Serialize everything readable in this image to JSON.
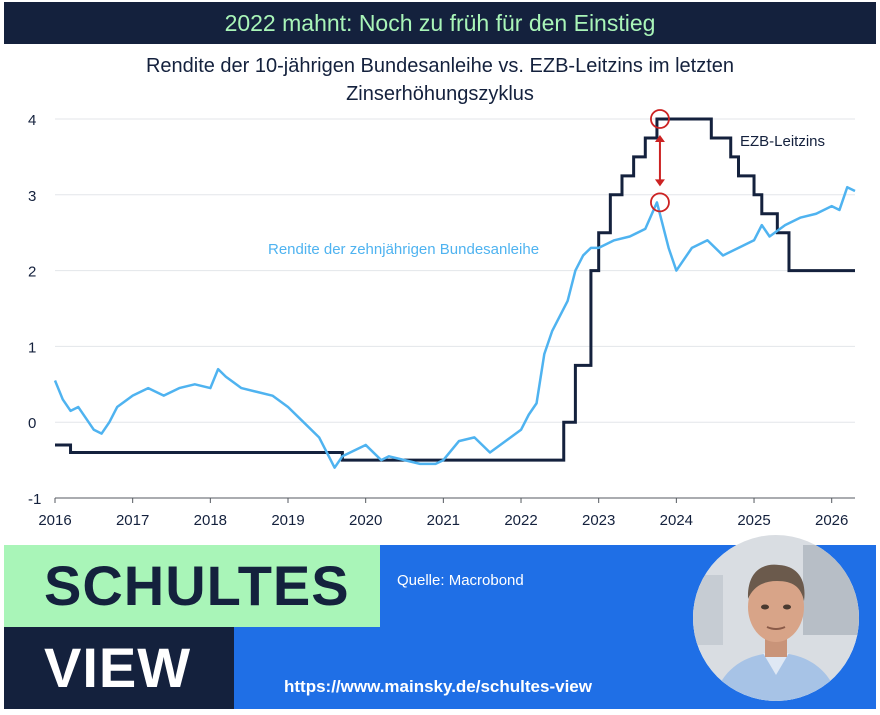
{
  "banner": {
    "title": "2022 mahnt: Noch zu früh für den Einstieg"
  },
  "brand": {
    "line1": "SCHULTES",
    "line2": "VIEW"
  },
  "footer": {
    "source": "Quelle: Macrobond",
    "url": "https://www.mainsky.de/schultes-view"
  },
  "colors": {
    "navy": "#14213d",
    "mint": "#a9f5b8",
    "blue": "#1f6fe6",
    "yield_line": "#4fb3f0",
    "rate_line": "#14213d",
    "marker": "#cc2222"
  },
  "chart_data": {
    "type": "line",
    "title_lines": [
      "Rendite der 10-jährigen Bundesanleihe vs. EZB-Leitzins im letzten",
      "Zinserhöhungszyklus"
    ],
    "xlabel": "",
    "ylabel": "",
    "xlim": [
      2016,
      2026.3
    ],
    "ylim": [
      -1,
      4
    ],
    "x_ticks": [
      "2016",
      "2017",
      "2018",
      "2019",
      "2020",
      "2021",
      "2022",
      "2023",
      "2024",
      "2025",
      "2026"
    ],
    "y_ticks": [
      "-1",
      "0",
      "1",
      "2",
      "3",
      "4"
    ],
    "grid": "horizontal",
    "annotations": [
      "EZB-Leitzins",
      "Rendite der zehnjährigen Bundesanleihe"
    ],
    "series": [
      {
        "name": "EZB-Leitzins",
        "step": true,
        "x": [
          2016.0,
          2016.2,
          2019.7,
          2022.55,
          2022.7,
          2022.9,
          2023.0,
          2023.15,
          2023.3,
          2023.45,
          2023.6,
          2023.75,
          2024.45,
          2024.7,
          2024.8,
          2025.0,
          2025.1,
          2025.3,
          2025.45,
          2026.3
        ],
        "y": [
          -0.3,
          -0.4,
          -0.5,
          0.0,
          0.75,
          2.0,
          2.5,
          3.0,
          3.25,
          3.5,
          3.75,
          4.0,
          3.75,
          3.5,
          3.25,
          3.0,
          2.75,
          2.5,
          2.0,
          2.0
        ]
      },
      {
        "name": "Rendite der zehnjährigen Bundesanleihe",
        "x": [
          2016.0,
          2016.1,
          2016.2,
          2016.3,
          2016.4,
          2016.5,
          2016.6,
          2016.7,
          2016.8,
          2017.0,
          2017.2,
          2017.4,
          2017.6,
          2017.8,
          2018.0,
          2018.1,
          2018.2,
          2018.4,
          2018.6,
          2018.8,
          2019.0,
          2019.2,
          2019.4,
          2019.6,
          2019.7,
          2019.9,
          2020.0,
          2020.2,
          2020.3,
          2020.5,
          2020.7,
          2020.9,
          2021.0,
          2021.2,
          2021.4,
          2021.6,
          2021.8,
          2022.0,
          2022.1,
          2022.2,
          2022.3,
          2022.4,
          2022.5,
          2022.6,
          2022.7,
          2022.8,
          2022.9,
          2023.0,
          2023.2,
          2023.4,
          2023.6,
          2023.75,
          2023.9,
          2024.0,
          2024.2,
          2024.4,
          2024.6,
          2024.8,
          2025.0,
          2025.1,
          2025.2,
          2025.4,
          2025.6,
          2025.8,
          2026.0,
          2026.1,
          2026.2,
          2026.3
        ],
        "y": [
          0.55,
          0.3,
          0.15,
          0.2,
          0.05,
          -0.1,
          -0.15,
          0.0,
          0.2,
          0.35,
          0.45,
          0.35,
          0.45,
          0.5,
          0.45,
          0.7,
          0.6,
          0.45,
          0.4,
          0.35,
          0.2,
          0.0,
          -0.2,
          -0.6,
          -0.45,
          -0.35,
          -0.3,
          -0.5,
          -0.45,
          -0.5,
          -0.55,
          -0.55,
          -0.5,
          -0.25,
          -0.2,
          -0.4,
          -0.25,
          -0.1,
          0.1,
          0.25,
          0.9,
          1.2,
          1.4,
          1.6,
          2.0,
          2.2,
          2.3,
          2.3,
          2.4,
          2.45,
          2.55,
          2.9,
          2.3,
          2.0,
          2.3,
          2.4,
          2.2,
          2.3,
          2.4,
          2.6,
          2.45,
          2.6,
          2.7,
          2.75,
          2.85,
          2.8,
          3.1,
          3.05
        ]
      }
    ],
    "markers": [
      {
        "x": 2023.75,
        "y": 4.0
      },
      {
        "x": 2023.75,
        "y": 2.9
      }
    ]
  }
}
